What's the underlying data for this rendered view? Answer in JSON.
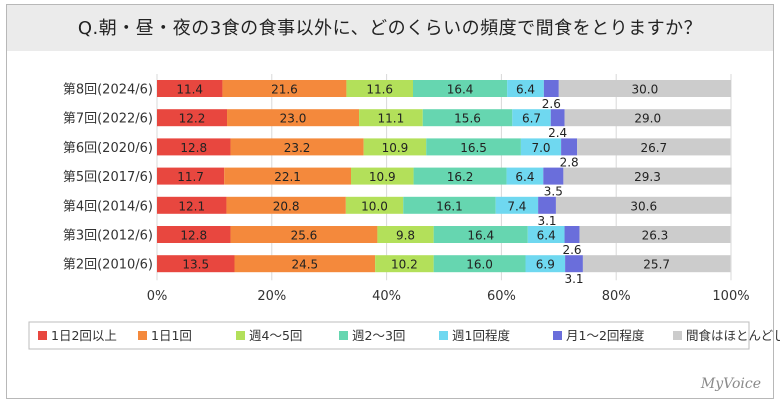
{
  "title": "Q.朝・昼・夜の3食の食事以外に、どのくらいの頻度で間食をとりますか？",
  "logo": "MyVoice",
  "chart_data": {
    "type": "bar",
    "orientation": "horizontal",
    "stacked": "percent",
    "categories": [
      "第8回(2024/6)",
      "第7回(2022/6)",
      "第6回(2020/6)",
      "第5回(2017/6)",
      "第4回(2014/6)",
      "第3回(2012/6)",
      "第2回(2010/6)"
    ],
    "series": [
      {
        "name": "1日2回以上",
        "color": "#e8473f",
        "values": [
          11.4,
          12.2,
          12.8,
          11.7,
          12.1,
          12.8,
          13.5
        ]
      },
      {
        "name": "1日1回",
        "color": "#f4893c",
        "values": [
          21.6,
          23.0,
          23.2,
          22.1,
          20.8,
          25.6,
          24.5
        ]
      },
      {
        "name": "週4～5回",
        "color": "#b3e05a",
        "values": [
          11.6,
          11.1,
          10.9,
          10.9,
          10.0,
          9.8,
          10.2
        ]
      },
      {
        "name": "週2～3回",
        "color": "#66d6b0",
        "values": [
          16.4,
          15.6,
          16.5,
          16.2,
          16.1,
          16.4,
          16.0
        ]
      },
      {
        "name": "週1回程度",
        "color": "#6fd8f0",
        "values": [
          6.4,
          6.7,
          7.0,
          6.4,
          7.4,
          6.4,
          6.9
        ]
      },
      {
        "name": "月1～2回程度",
        "color": "#6a6edb",
        "values": [
          2.6,
          2.4,
          2.8,
          3.5,
          3.1,
          2.6,
          3.1
        ]
      },
      {
        "name": "間食はほとんどしない",
        "color": "#cccccc",
        "values": [
          30.0,
          29.0,
          26.7,
          29.3,
          30.6,
          26.3,
          25.7
        ]
      }
    ],
    "xlim": [
      0,
      100
    ],
    "xticks": [
      "0%",
      "20%",
      "40%",
      "60%",
      "80%",
      "100%"
    ],
    "grid": true,
    "legend": "bottom"
  }
}
